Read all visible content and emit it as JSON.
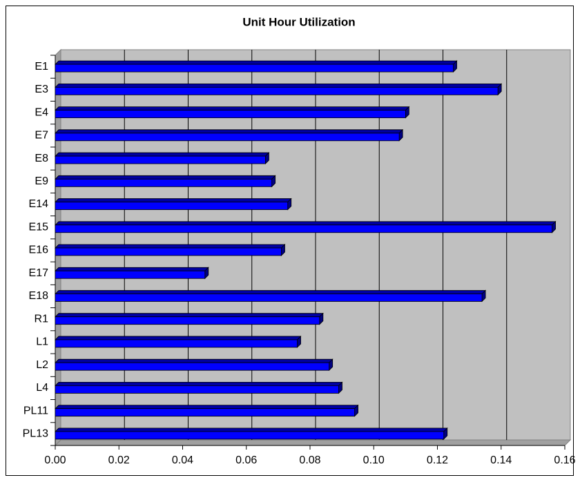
{
  "chart_data": {
    "type": "bar",
    "orientation": "horizontal",
    "title": "Unit Hour Utilization",
    "categories": [
      "E1",
      "E3",
      "E4",
      "E7",
      "E8",
      "E9",
      "E14",
      "E15",
      "E16",
      "E17",
      "E18",
      "R1",
      "L1",
      "L2",
      "L4",
      "PL11",
      "PL13"
    ],
    "values": [
      0.125,
      0.139,
      0.11,
      0.108,
      0.066,
      0.068,
      0.073,
      0.156,
      0.071,
      0.047,
      0.134,
      0.083,
      0.076,
      0.086,
      0.089,
      0.094,
      0.122
    ],
    "color": "#0000ff",
    "xlim": [
      0,
      0.16
    ],
    "xticks": [
      {
        "value": 0,
        "label": "0.00"
      },
      {
        "value": 0.02,
        "label": "0.02"
      },
      {
        "value": 0.04,
        "label": "0.04"
      },
      {
        "value": 0.06,
        "label": "0.06"
      },
      {
        "value": 0.08,
        "label": "0.08"
      },
      {
        "value": 0.1,
        "label": "0.10"
      },
      {
        "value": 0.12,
        "label": "0.12"
      },
      {
        "value": 0.14,
        "label": "0.14"
      },
      {
        "value": 0.16,
        "label": "0.16"
      }
    ],
    "grid": true
  }
}
